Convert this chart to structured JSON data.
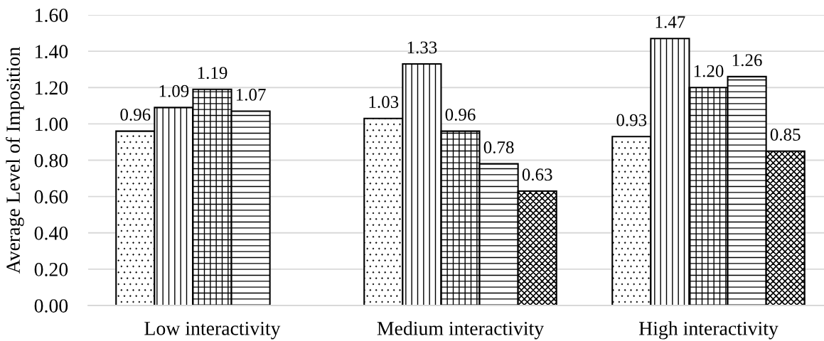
{
  "chart_data": {
    "type": "bar",
    "ylabel": "Average Level of Imposition",
    "categories": [
      "Low interactivity",
      "Medium interactivity",
      "High interactivity"
    ],
    "series": [
      {
        "color": "#000000",
        "values": [
          0.96,
          1.03,
          0.93
        ],
        "value_labels": [
          "0.96",
          "1.03",
          "0.93"
        ]
      },
      {
        "color": "#000000",
        "values": [
          1.09,
          1.33,
          1.47
        ],
        "value_labels": [
          "1.09",
          "1.33",
          "1.47"
        ]
      },
      {
        "color": "#000000",
        "values": [
          1.19,
          0.96,
          1.2
        ],
        "value_labels": [
          "1.19",
          "0.96",
          "1.20"
        ]
      },
      {
        "color": "#000000",
        "values": [
          1.07,
          0.78,
          1.26
        ],
        "value_labels": [
          "1.07",
          "0.78",
          "1.26"
        ]
      },
      {
        "color": "#000000",
        "values": [
          null,
          0.63,
          0.85
        ],
        "value_labels": [
          null,
          "0.63",
          "0.85"
        ]
      }
    ],
    "ylim": [
      0,
      1.6
    ],
    "yticks": [
      {
        "value": 0,
        "label": "0.00"
      },
      {
        "value": 0.2,
        "label": "0.20"
      },
      {
        "value": 0.4,
        "label": "0.40"
      },
      {
        "value": 0.6,
        "label": "0.60"
      },
      {
        "value": 0.8,
        "label": "0.80"
      },
      {
        "value": 1.0,
        "label": "1.00"
      },
      {
        "value": 1.2,
        "label": "1.20"
      },
      {
        "value": 1.4,
        "label": "1.40"
      },
      {
        "value": 1.6,
        "label": "1.60"
      }
    ],
    "grid": "y"
  }
}
